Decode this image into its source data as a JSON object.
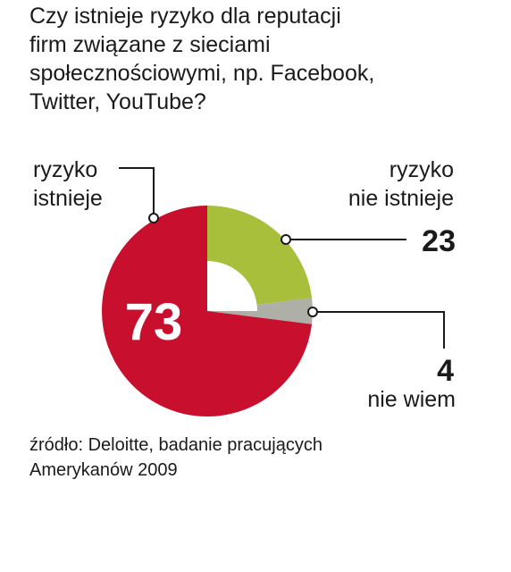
{
  "title_lines": [
    "Czy istnieje ryzyko dla reputacji",
    "firm związane z sieciami",
    "społecznościowymi, np. Facebook,",
    "Twitter, YouTube?"
  ],
  "source_lines": [
    "źródło: Deloitte, badanie pracujących",
    "Amerykanów 2009"
  ],
  "colors": {
    "ryzyko_istnieje": "#c8102e",
    "ryzyko_nie_istnieje": "#a8bf3c",
    "nie_wiem": "#aeb0a8",
    "text": "#1a1a1a"
  },
  "chart_data": {
    "type": "pie",
    "slices": [
      {
        "label": "ryzyko nie istnieje",
        "label_lines": [
          "ryzyko",
          "nie istnieje"
        ],
        "value": 23,
        "value_label": "23",
        "color": "#a8bf3c"
      },
      {
        "label": "nie wiem",
        "label_lines": [
          "nie wiem"
        ],
        "value": 4,
        "value_label": "4",
        "color": "#aeb0a8"
      },
      {
        "label": "ryzyko istnieje",
        "label_lines": [
          "ryzyko",
          "istnieje"
        ],
        "value": 73,
        "value_label": "73",
        "color": "#c8102e"
      }
    ]
  }
}
